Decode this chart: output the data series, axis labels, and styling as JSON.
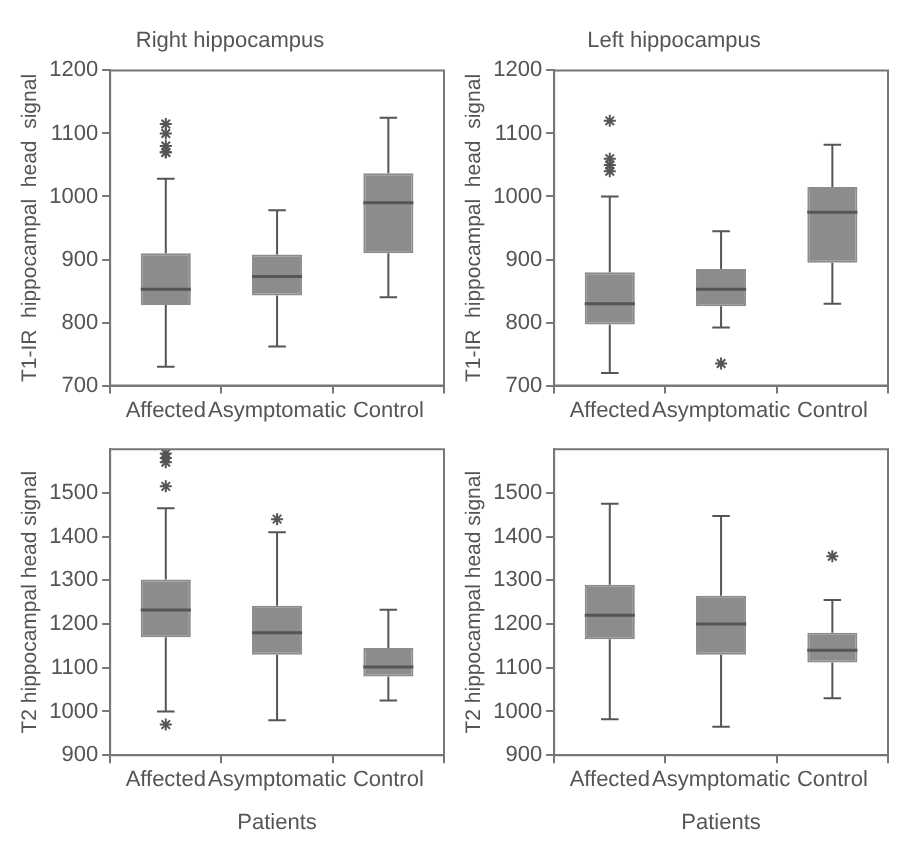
{
  "chart_data": [
    {
      "type": "box",
      "title": "Right hippocampus",
      "ylabel": "T1-IR  hippocampal  head  signal",
      "categories": [
        "Affected",
        "Asymptomatic",
        "Control"
      ],
      "color": "#8c8c8c",
      "marker": "star",
      "grid": false,
      "ylim": [
        700,
        1200
      ],
      "yticks": [
        700,
        800,
        900,
        1000,
        1100,
        1200
      ],
      "boxes": [
        {
          "low": 730,
          "q1": 828,
          "median": 853,
          "q3": 910,
          "high": 1028,
          "outliers": [
            1070,
            1070,
            1080,
            1100,
            1115
          ]
        },
        {
          "low": 762,
          "q1": 843,
          "median": 873,
          "q3": 908,
          "high": 978
        },
        {
          "low": 840,
          "q1": 910,
          "median": 990,
          "q3": 1037,
          "high": 1125
        }
      ]
    },
    {
      "type": "box",
      "title": "Left hippocampus",
      "ylabel": "T1-IR  hippocampal  head  signal",
      "categories": [
        "Affected",
        "Asymptomatic",
        "Control"
      ],
      "color": "#8c8c8c",
      "marker": "star",
      "grid": false,
      "ylim": [
        700,
        1200
      ],
      "yticks": [
        700,
        800,
        900,
        1000,
        1100,
        1200
      ],
      "boxes": [
        {
          "low": 720,
          "q1": 797,
          "median": 830,
          "q3": 880,
          "high": 1000,
          "outliers": [
            1040,
            1050,
            1060,
            1120
          ]
        },
        {
          "low": 792,
          "q1": 826,
          "median": 853,
          "q3": 885,
          "high": 945,
          "outliers": [
            735
          ]
        },
        {
          "low": 830,
          "q1": 895,
          "median": 975,
          "q3": 1015,
          "high": 1082
        }
      ]
    },
    {
      "type": "box",
      "xlabel": "Patients",
      "ylabel": "T2 hippocampal head signal",
      "categories": [
        "Affected",
        "Asymptomatic",
        "Control"
      ],
      "color": "#8c8c8c",
      "marker": "star",
      "grid": false,
      "ylim": [
        900,
        1600
      ],
      "yticks": [
        900,
        1000,
        1100,
        1200,
        1300,
        1400,
        1500
      ],
      "boxes": [
        {
          "low": 1000,
          "q1": 1170,
          "median": 1232,
          "q3": 1302,
          "high": 1465,
          "outliers": [
            970,
            1515,
            1570,
            1580,
            1590
          ]
        },
        {
          "low": 980,
          "q1": 1130,
          "median": 1180,
          "q3": 1242,
          "high": 1410,
          "outliers": [
            1440
          ]
        },
        {
          "low": 1025,
          "q1": 1080,
          "median": 1102,
          "q3": 1145,
          "high": 1233
        }
      ]
    },
    {
      "type": "box",
      "xlabel": "Patients",
      "ylabel": "T2 hippocampal head signal",
      "categories": [
        "Affected",
        "Asymptomatic",
        "Control"
      ],
      "color": "#8c8c8c",
      "marker": "star",
      "grid": false,
      "ylim": [
        900,
        1600
      ],
      "yticks": [
        900,
        1000,
        1100,
        1200,
        1300,
        1400,
        1500
      ],
      "boxes": [
        {
          "low": 982,
          "q1": 1165,
          "median": 1220,
          "q3": 1290,
          "high": 1475
        },
        {
          "low": 965,
          "q1": 1130,
          "median": 1200,
          "q3": 1265,
          "high": 1447
        },
        {
          "low": 1030,
          "q1": 1112,
          "median": 1140,
          "q3": 1180,
          "high": 1255,
          "outliers": [
            1355
          ]
        }
      ]
    }
  ]
}
